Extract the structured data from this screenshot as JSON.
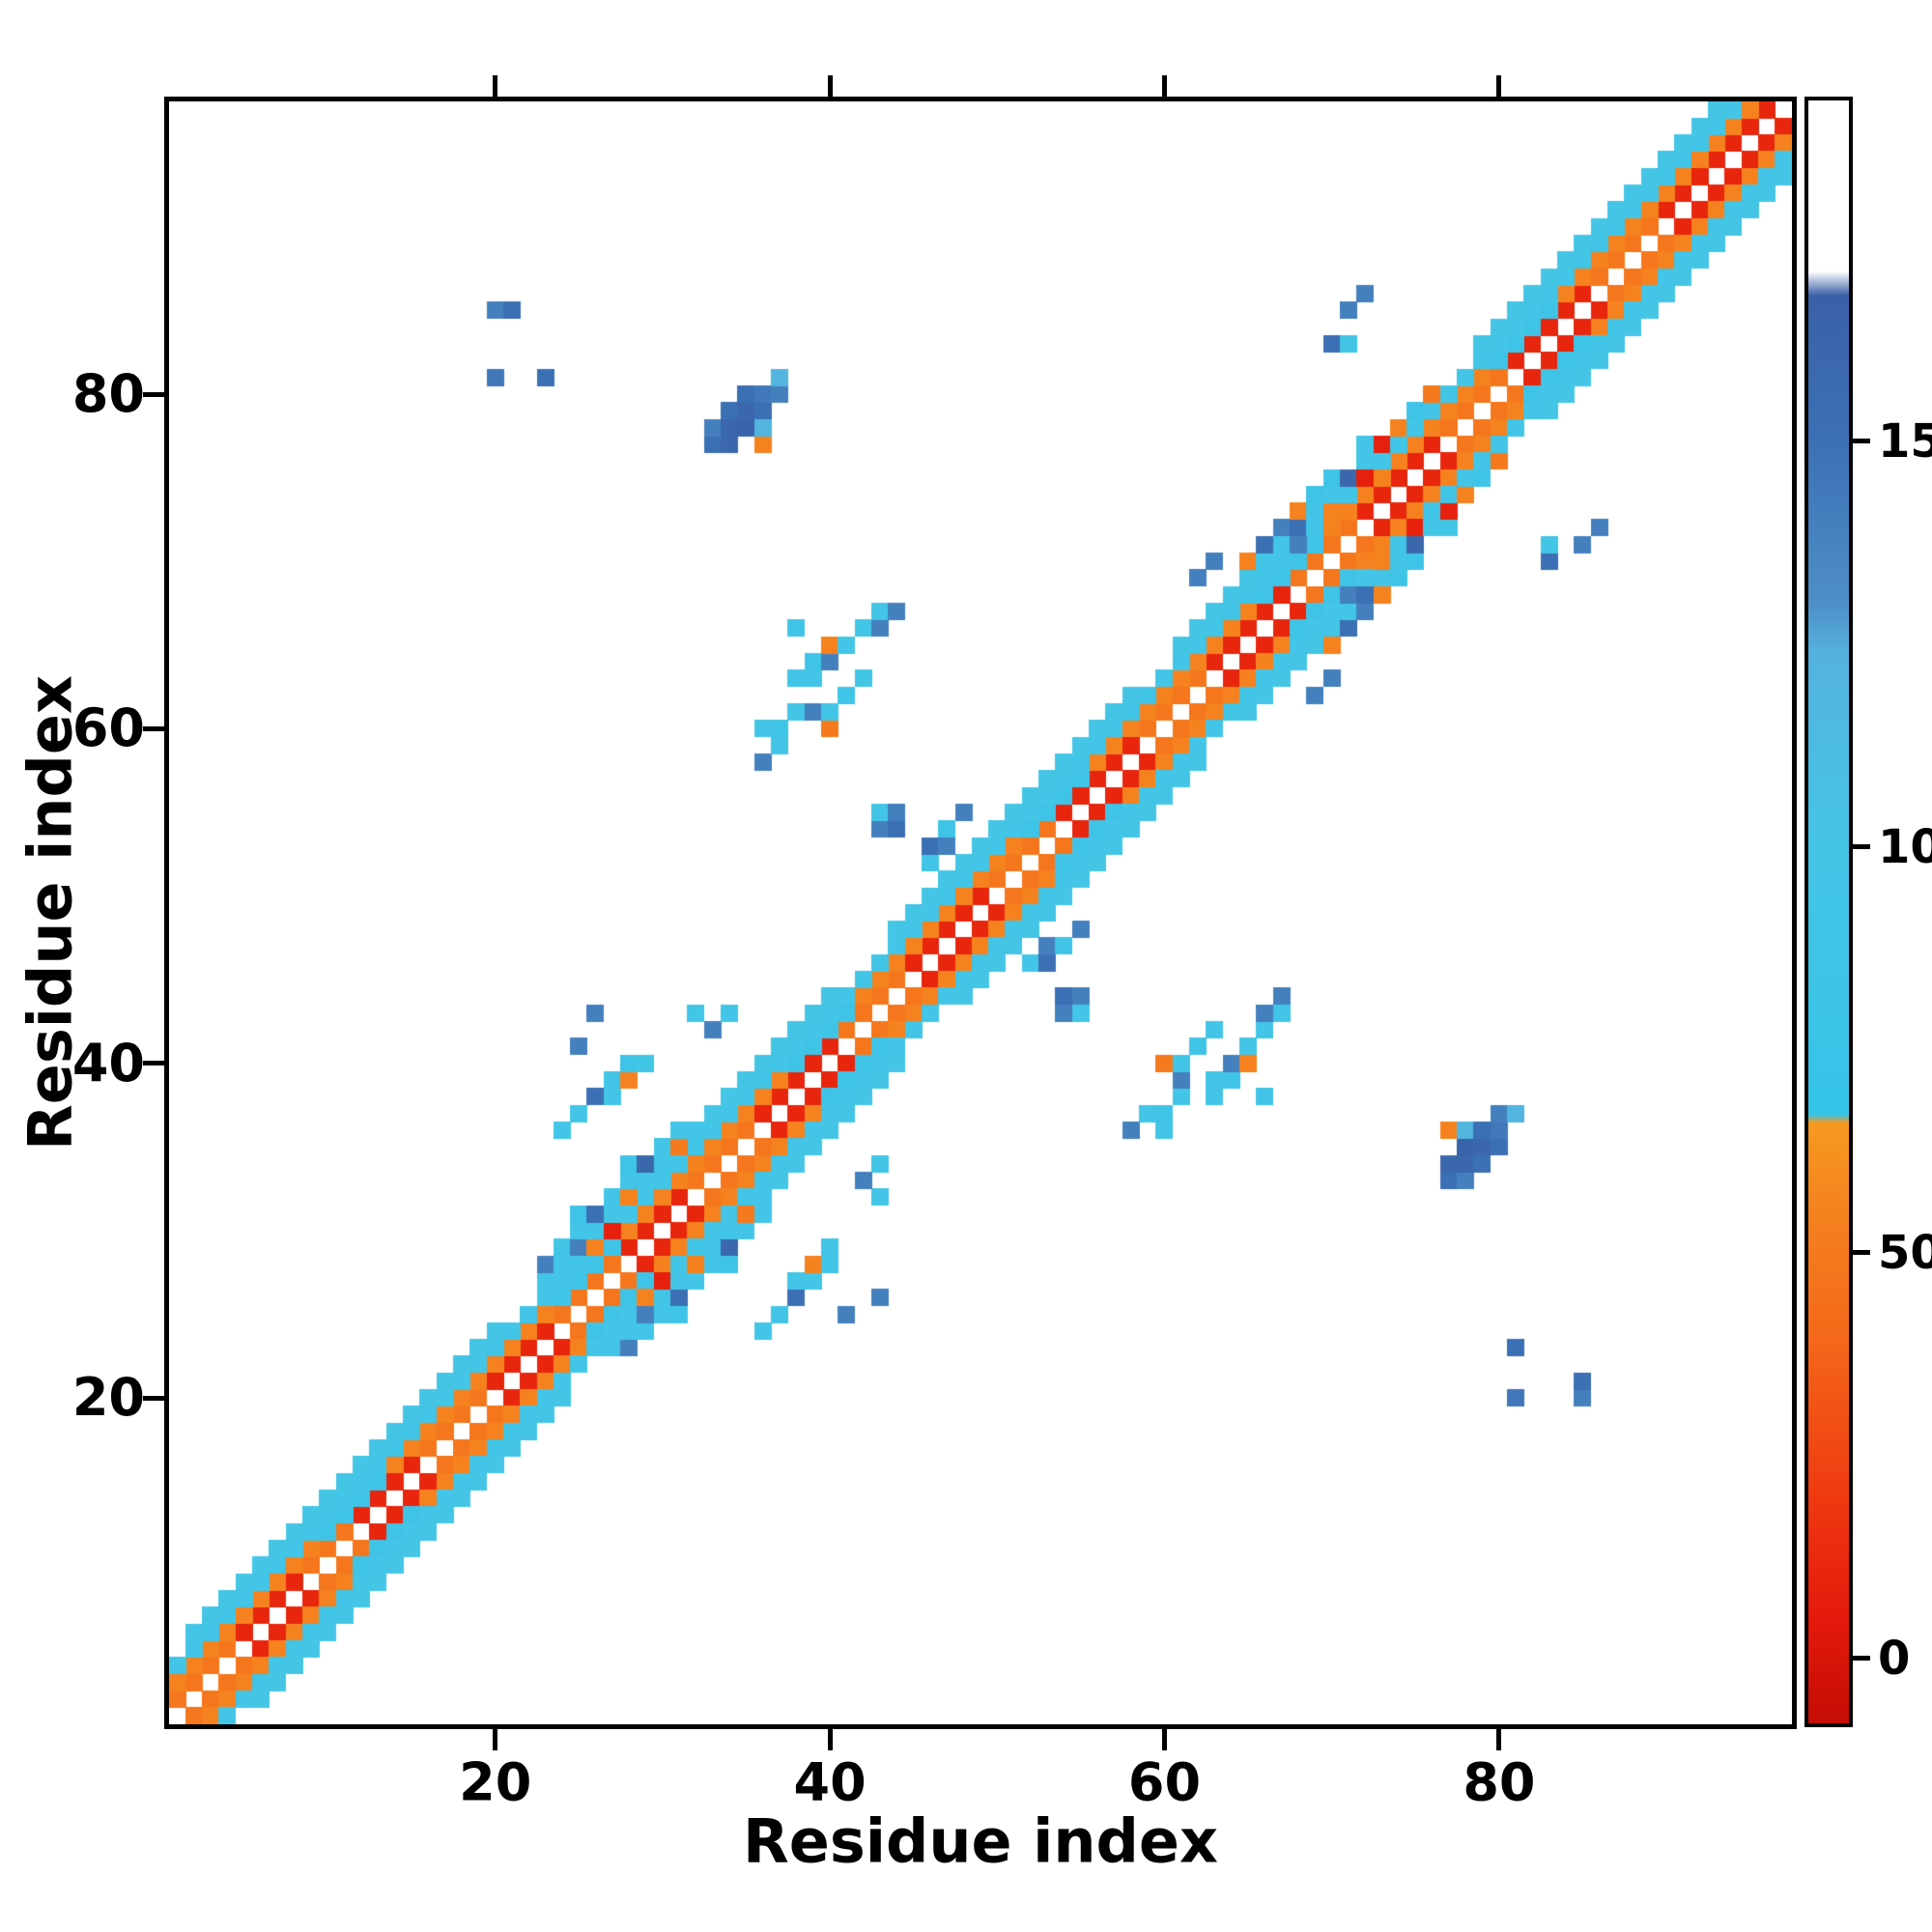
{
  "chart_data": {
    "type": "heatmap",
    "title": "",
    "xlabel": "Residue index",
    "ylabel": "Residue index",
    "n": 97,
    "x_ticks": [
      20,
      40,
      60,
      80
    ],
    "y_ticks": [
      20,
      40,
      60,
      80
    ],
    "grid": false,
    "background_value_color": "#ffffff",
    "colorbar": {
      "position": "right",
      "vmin": -8,
      "vmax": 192,
      "ticks": [
        0,
        50,
        100,
        150
      ],
      "stops": [
        [
          -8,
          "#c50d05"
        ],
        [
          5,
          "#e51a0c"
        ],
        [
          20,
          "#ef3a10"
        ],
        [
          40,
          "#f4691a"
        ],
        [
          55,
          "#f5821e"
        ],
        [
          66,
          "#f79a21"
        ],
        [
          67,
          "#35c3e8"
        ],
        [
          100,
          "#44c5e6"
        ],
        [
          124,
          "#54b2de"
        ],
        [
          130,
          "#4e8fc7"
        ],
        [
          150,
          "#3c70b4"
        ],
        [
          168,
          "#3a61a8"
        ],
        [
          171,
          "#ffffff"
        ],
        [
          192,
          "#ffffff"
        ]
      ]
    },
    "symmetric": true,
    "bands": [
      {
        "sep": 1,
        "value_segments": [
          [
            1,
            4,
            48
          ],
          [
            5,
            8,
            10
          ],
          [
            9,
            11,
            48
          ],
          [
            12,
            15,
            10
          ],
          [
            16,
            19,
            48
          ],
          [
            20,
            23,
            10
          ],
          [
            24,
            27,
            48
          ],
          [
            28,
            31,
            10
          ],
          [
            32,
            35,
            48
          ],
          [
            36,
            40,
            10
          ],
          [
            41,
            44,
            48
          ],
          [
            45,
            49,
            10
          ],
          [
            50,
            53,
            48
          ],
          [
            54,
            58,
            10
          ],
          [
            59,
            62,
            48
          ],
          [
            63,
            67,
            10
          ],
          [
            68,
            71,
            48
          ],
          [
            72,
            76,
            10
          ],
          [
            77,
            80,
            48
          ],
          [
            81,
            85,
            10
          ],
          [
            86,
            89,
            48
          ],
          [
            90,
            96,
            10
          ]
        ]
      },
      {
        "sep": 2,
        "value_segments": [
          [
            1,
            9,
            55
          ],
          [
            10,
            13,
            90
          ],
          [
            14,
            23,
            55
          ],
          [
            24,
            27,
            90
          ],
          [
            28,
            37,
            55
          ],
          [
            38,
            41,
            90
          ],
          [
            42,
            51,
            55
          ],
          [
            52,
            55,
            90
          ],
          [
            56,
            65,
            55
          ],
          [
            66,
            69,
            90
          ],
          [
            70,
            79,
            55
          ],
          [
            80,
            83,
            90
          ],
          [
            84,
            95,
            55
          ]
        ]
      },
      {
        "sep": 3,
        "value_segments": [
          [
            1,
            94,
            95
          ]
        ]
      },
      {
        "sep": 4,
        "value_segments": [
          [
            2,
            20,
            100
          ],
          [
            25,
            40,
            100
          ],
          [
            44,
            58,
            100
          ],
          [
            61,
            76,
            100
          ],
          [
            79,
            93,
            100
          ]
        ]
      }
    ],
    "contacts": [
      [
        23,
        27,
        95
      ],
      [
        23,
        28,
        140
      ],
      [
        24,
        28,
        95
      ],
      [
        24,
        29,
        95
      ],
      [
        25,
        29,
        140
      ],
      [
        25,
        30,
        95
      ],
      [
        25,
        31,
        90
      ],
      [
        26,
        29,
        55
      ],
      [
        26,
        30,
        95
      ],
      [
        26,
        31,
        150
      ],
      [
        27,
        30,
        8
      ],
      [
        27,
        31,
        95
      ],
      [
        27,
        32,
        95
      ],
      [
        28,
        32,
        55
      ],
      [
        28,
        33,
        95
      ],
      [
        28,
        34,
        90
      ],
      [
        29,
        33,
        95
      ],
      [
        29,
        34,
        160
      ],
      [
        30,
        34,
        95
      ],
      [
        30,
        35,
        95
      ],
      [
        31,
        35,
        50
      ],
      [
        31,
        36,
        95
      ],
      [
        32,
        36,
        95
      ],
      [
        65,
        70,
        55
      ],
      [
        66,
        70,
        95
      ],
      [
        66,
        71,
        150
      ],
      [
        67,
        71,
        95
      ],
      [
        67,
        72,
        140
      ],
      [
        68,
        71,
        140
      ],
      [
        68,
        72,
        150
      ],
      [
        68,
        73,
        55
      ],
      [
        69,
        72,
        95
      ],
      [
        69,
        73,
        95
      ],
      [
        69,
        74,
        90
      ],
      [
        70,
        73,
        55
      ],
      [
        70,
        74,
        95
      ],
      [
        70,
        75,
        90
      ],
      [
        71,
        74,
        95
      ],
      [
        71,
        75,
        160
      ],
      [
        72,
        75,
        8
      ],
      [
        72,
        76,
        95
      ],
      [
        72,
        77,
        95
      ],
      [
        73,
        76,
        95
      ],
      [
        73,
        77,
        8
      ],
      [
        74,
        77,
        95
      ],
      [
        74,
        78,
        55
      ],
      [
        75,
        78,
        95
      ],
      [
        75,
        79,
        90
      ],
      [
        76,
        79,
        95
      ],
      [
        76,
        80,
        50
      ],
      [
        77,
        80,
        95
      ],
      [
        33,
        77,
        150
      ],
      [
        33,
        78,
        140
      ],
      [
        34,
        77,
        160
      ],
      [
        34,
        78,
        160
      ],
      [
        34,
        79,
        150
      ],
      [
        35,
        78,
        165
      ],
      [
        35,
        79,
        160
      ],
      [
        35,
        80,
        150
      ],
      [
        36,
        77,
        55
      ],
      [
        36,
        78,
        120
      ],
      [
        36,
        79,
        150
      ],
      [
        36,
        80,
        145
      ],
      [
        37,
        80,
        140
      ],
      [
        37,
        81,
        120
      ],
      [
        20,
        81,
        145
      ],
      [
        20,
        85,
        140
      ],
      [
        21,
        85,
        150
      ],
      [
        23,
        81,
        150
      ],
      [
        36,
        58,
        140
      ],
      [
        37,
        59,
        95
      ],
      [
        36,
        60,
        95
      ],
      [
        37,
        60,
        90
      ],
      [
        38,
        61,
        95
      ],
      [
        39,
        61,
        140
      ],
      [
        40,
        60,
        50
      ],
      [
        40,
        61,
        95
      ],
      [
        41,
        62,
        90
      ],
      [
        38,
        63,
        95
      ],
      [
        39,
        63,
        95
      ],
      [
        42,
        63,
        95
      ],
      [
        39,
        64,
        90
      ],
      [
        40,
        64,
        140
      ],
      [
        40,
        65,
        55
      ],
      [
        41,
        65,
        95
      ],
      [
        42,
        66,
        95
      ],
      [
        43,
        66,
        140
      ],
      [
        38,
        66,
        90
      ],
      [
        43,
        67,
        95
      ],
      [
        44,
        67,
        140
      ],
      [
        43,
        54,
        140
      ],
      [
        43,
        55,
        95
      ],
      [
        44,
        54,
        150
      ],
      [
        44,
        55,
        140
      ],
      [
        24,
        36,
        95
      ],
      [
        25,
        37,
        95
      ],
      [
        26,
        38,
        150
      ],
      [
        27,
        38,
        95
      ],
      [
        27,
        39,
        95
      ],
      [
        28,
        39,
        55
      ],
      [
        28,
        40,
        90
      ],
      [
        29,
        40,
        95
      ],
      [
        25,
        41,
        140
      ],
      [
        26,
        43,
        140
      ],
      [
        46,
        52,
        95
      ],
      [
        46,
        53,
        150
      ],
      [
        47,
        53,
        140
      ],
      [
        47,
        54,
        90
      ],
      [
        48,
        55,
        140
      ],
      [
        70,
        83,
        150
      ],
      [
        71,
        83,
        95
      ],
      [
        71,
        85,
        140
      ],
      [
        72,
        86,
        140
      ],
      [
        32,
        43,
        95
      ],
      [
        33,
        42,
        140
      ],
      [
        34,
        43,
        95
      ],
      [
        62,
        69,
        140
      ],
      [
        63,
        70,
        140
      ]
    ]
  }
}
